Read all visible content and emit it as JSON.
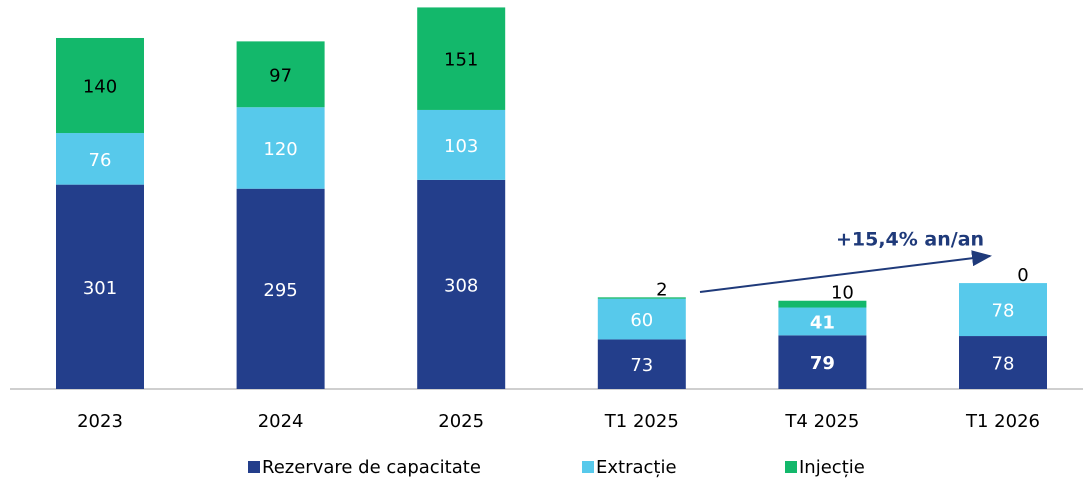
{
  "chart_data": {
    "type": "stacked_bar",
    "categories": [
      "2023",
      "2024",
      "2025",
      "T1 2025",
      "T4 2025",
      "T1 2026"
    ],
    "series": [
      {
        "name": "Rezervare de capacitate",
        "color": "#233e8b",
        "values": [
          301,
          295,
          308,
          73,
          79,
          78
        ]
      },
      {
        "name": "Extracție",
        "color": "#57c9eb",
        "values": [
          76,
          120,
          103,
          60,
          41,
          78
        ]
      },
      {
        "name": "Injecție",
        "color": "#13b86b",
        "values": [
          140,
          97,
          151,
          2,
          10,
          0
        ]
      }
    ],
    "ylim": [
      0,
      570
    ],
    "annotation": "+15,4% an/an"
  }
}
